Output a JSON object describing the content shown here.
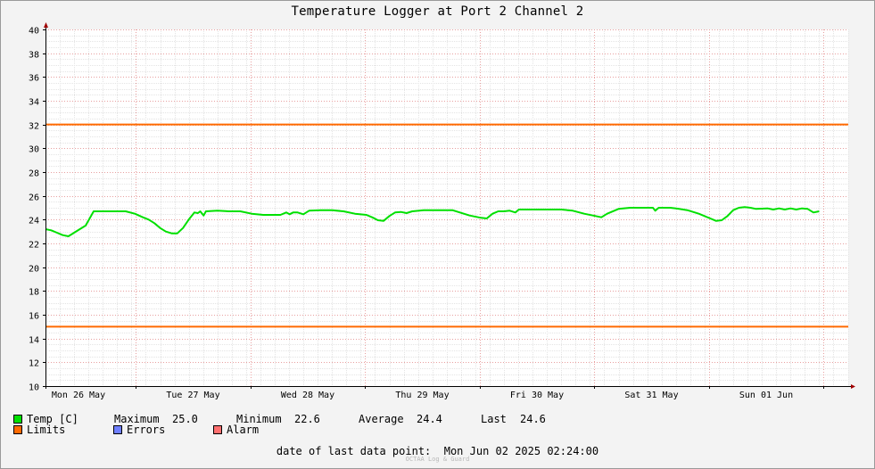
{
  "chart_data": {
    "type": "line",
    "title": "Temperature Logger at Port 2 Channel 2",
    "ylim": [
      10,
      40
    ],
    "yticks": [
      10,
      12,
      14,
      16,
      18,
      20,
      22,
      24,
      26,
      28,
      30,
      32,
      34,
      36,
      38,
      40
    ],
    "xticks": [
      "Mon 26 May",
      "Tue 27 May",
      "Wed 28 May",
      "Thu 29 May",
      "Fri 30 May",
      "Sat 31 May",
      "Sun 01 Jun"
    ],
    "grid": true,
    "series": [
      {
        "name": "Temp [C]",
        "color": "#00e000",
        "points": [
          [
            0.0,
            23.2
          ],
          [
            0.05,
            23.1
          ],
          [
            0.1,
            22.9
          ],
          [
            0.15,
            22.7
          ],
          [
            0.2,
            22.6
          ],
          [
            0.25,
            22.9
          ],
          [
            0.3,
            23.2
          ],
          [
            0.35,
            23.5
          ],
          [
            0.38,
            24.0
          ],
          [
            0.42,
            24.7
          ],
          [
            0.5,
            24.7
          ],
          [
            0.6,
            24.7
          ],
          [
            0.7,
            24.7
          ],
          [
            0.78,
            24.5
          ],
          [
            0.85,
            24.2
          ],
          [
            0.9,
            24.0
          ],
          [
            0.95,
            23.7
          ],
          [
            1.0,
            23.3
          ],
          [
            1.05,
            23.0
          ],
          [
            1.1,
            22.85
          ],
          [
            1.15,
            22.85
          ],
          [
            1.2,
            23.3
          ],
          [
            1.25,
            24.0
          ],
          [
            1.3,
            24.6
          ],
          [
            1.33,
            24.55
          ],
          [
            1.35,
            24.7
          ],
          [
            1.38,
            24.35
          ],
          [
            1.4,
            24.7
          ],
          [
            1.5,
            24.75
          ],
          [
            1.6,
            24.7
          ],
          [
            1.7,
            24.7
          ],
          [
            1.8,
            24.5
          ],
          [
            1.9,
            24.4
          ],
          [
            2.0,
            24.4
          ],
          [
            2.05,
            24.4
          ],
          [
            2.1,
            24.6
          ],
          [
            2.13,
            24.45
          ],
          [
            2.16,
            24.6
          ],
          [
            2.2,
            24.6
          ],
          [
            2.25,
            24.45
          ],
          [
            2.3,
            24.75
          ],
          [
            2.4,
            24.8
          ],
          [
            2.5,
            24.8
          ],
          [
            2.6,
            24.7
          ],
          [
            2.7,
            24.5
          ],
          [
            2.8,
            24.4
          ],
          [
            2.85,
            24.2
          ],
          [
            2.9,
            23.95
          ],
          [
            2.95,
            23.9
          ],
          [
            3.0,
            24.3
          ],
          [
            3.05,
            24.6
          ],
          [
            3.1,
            24.65
          ],
          [
            3.15,
            24.55
          ],
          [
            3.2,
            24.7
          ],
          [
            3.3,
            24.8
          ],
          [
            3.4,
            24.8
          ],
          [
            3.5,
            24.8
          ],
          [
            3.55,
            24.8
          ],
          [
            3.6,
            24.65
          ],
          [
            3.7,
            24.35
          ],
          [
            3.8,
            24.15
          ],
          [
            3.85,
            24.1
          ],
          [
            3.9,
            24.5
          ],
          [
            3.95,
            24.7
          ],
          [
            4.0,
            24.7
          ],
          [
            4.05,
            24.75
          ],
          [
            4.1,
            24.6
          ],
          [
            4.13,
            24.85
          ],
          [
            4.2,
            24.85
          ],
          [
            4.3,
            24.85
          ],
          [
            4.4,
            24.85
          ],
          [
            4.5,
            24.85
          ],
          [
            4.6,
            24.75
          ],
          [
            4.7,
            24.5
          ],
          [
            4.8,
            24.3
          ],
          [
            4.85,
            24.2
          ],
          [
            4.9,
            24.5
          ],
          [
            5.0,
            24.9
          ],
          [
            5.1,
            25.0
          ],
          [
            5.2,
            25.0
          ],
          [
            5.3,
            25.0
          ],
          [
            5.32,
            24.75
          ],
          [
            5.35,
            25.0
          ],
          [
            5.45,
            25.0
          ],
          [
            5.5,
            24.95
          ],
          [
            5.6,
            24.8
          ],
          [
            5.7,
            24.5
          ],
          [
            5.8,
            24.1
          ],
          [
            5.85,
            23.9
          ],
          [
            5.9,
            23.95
          ],
          [
            5.95,
            24.3
          ],
          [
            6.0,
            24.8
          ],
          [
            6.05,
            25.0
          ],
          [
            6.1,
            25.05
          ],
          [
            6.15,
            25.0
          ],
          [
            6.2,
            24.9
          ],
          [
            6.3,
            24.95
          ],
          [
            6.35,
            24.85
          ],
          [
            6.4,
            24.95
          ],
          [
            6.45,
            24.85
          ],
          [
            6.5,
            24.95
          ],
          [
            6.55,
            24.85
          ],
          [
            6.6,
            24.95
          ],
          [
            6.65,
            24.9
          ],
          [
            6.7,
            24.6
          ],
          [
            6.75,
            24.7
          ]
        ]
      },
      {
        "name": "Limits",
        "color": "#ff6a00",
        "values": [
          32,
          15
        ]
      },
      {
        "name": "Errors",
        "color": "#6f7fff"
      },
      {
        "name": "Alarm",
        "color": "#ff6f6f"
      }
    ]
  },
  "stats": {
    "max_label": "Maximum",
    "max_value": "25.0",
    "min_label": "Minimum",
    "min_value": "22.6",
    "avg_label": "Average",
    "avg_value": "24.4",
    "last_label": "Last",
    "last_value": "24.6"
  },
  "footer": {
    "label": "date of last data point:",
    "value": "Mon Jun 02 2025 02:24:00",
    "credit": "OCTAA Log & Guard"
  }
}
